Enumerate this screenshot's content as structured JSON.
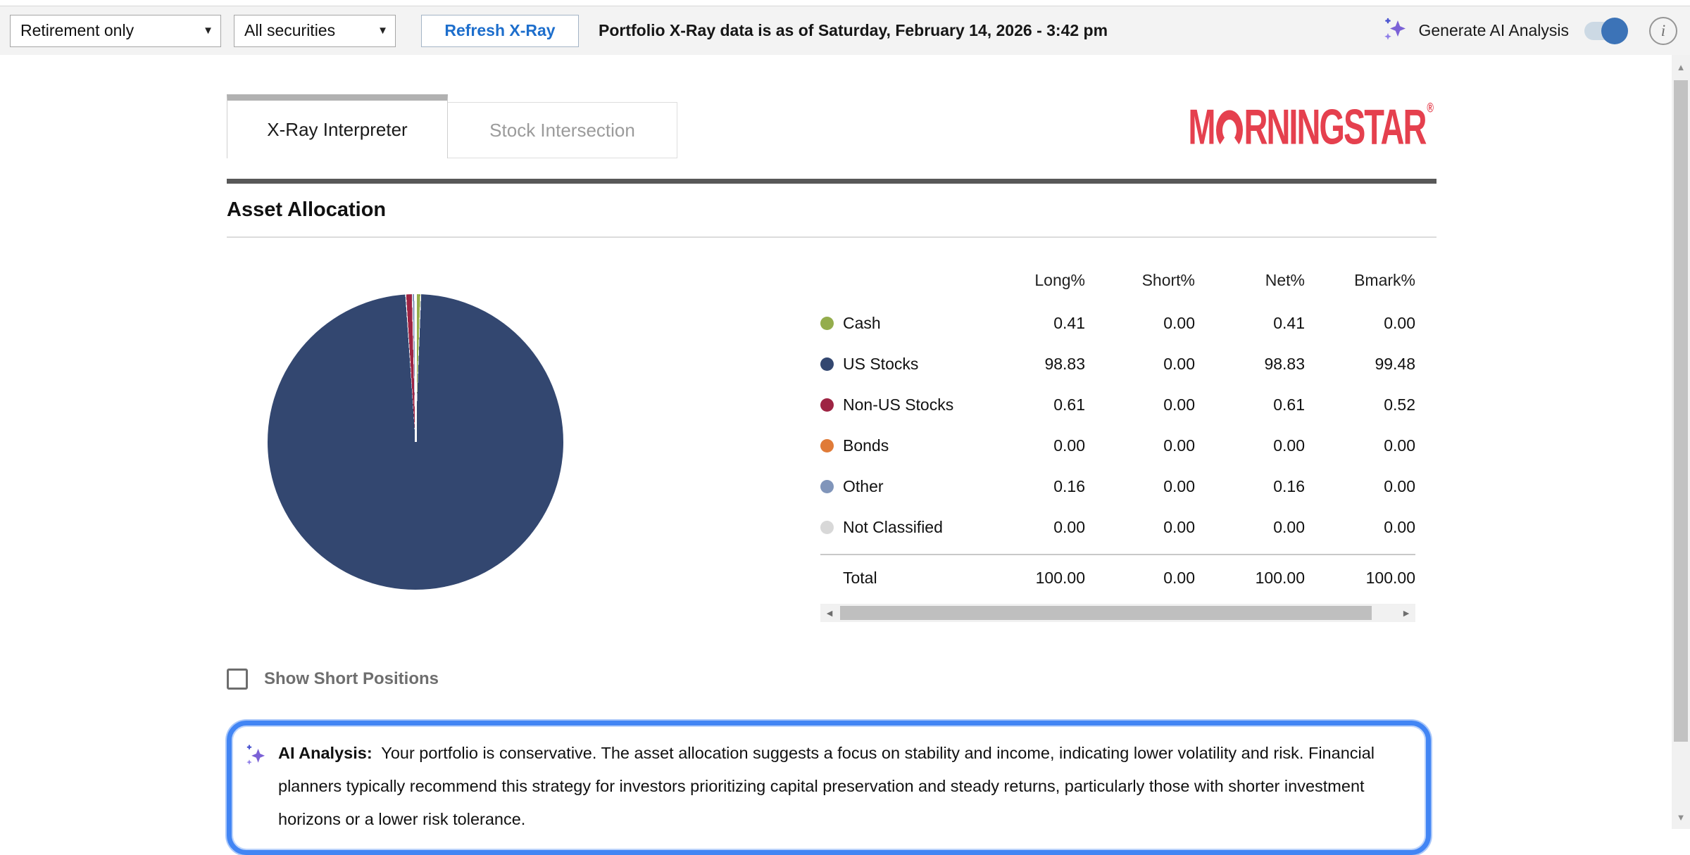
{
  "toolbar": {
    "portfolio_filter": "Retirement only",
    "securities_filter": "All securities",
    "refresh_label": "Refresh X-Ray",
    "status_text": "Portfolio X-Ray data is as of Saturday, February 14, 2026 - 3:42 pm",
    "ai_toggle_label": "Generate AI Analysis",
    "ai_toggle_on": true,
    "accent_blue": "#1d6ecc",
    "toggle_blue": "#3c73b7"
  },
  "brand": {
    "logo_prefix": "M",
    "logo_suffix": "RNINGSTAR",
    "logo_mark": "®",
    "logo_color": "#e5404e"
  },
  "tabs": [
    {
      "label": "X-Ray Interpreter",
      "active": true
    },
    {
      "label": "Stock Intersection",
      "active": false
    }
  ],
  "section_title": "Asset Allocation",
  "chart_data": {
    "type": "pie",
    "title": "Asset Allocation",
    "categories": [
      "Cash",
      "US Stocks",
      "Non-US Stocks",
      "Bonds",
      "Other",
      "Not Classified"
    ],
    "colors": [
      "#94ad4c",
      "#334770",
      "#9e2443",
      "#e07b38",
      "#8095ba",
      "#d8d8d8"
    ],
    "series": [
      {
        "name": "Long%",
        "values": [
          0.41,
          98.83,
          0.61,
          0.0,
          0.16,
          0.0
        ]
      },
      {
        "name": "Short%",
        "values": [
          0.0,
          0.0,
          0.0,
          0.0,
          0.0,
          0.0
        ]
      },
      {
        "name": "Net%",
        "values": [
          0.41,
          98.83,
          0.61,
          0.0,
          0.16,
          0.0
        ]
      },
      {
        "name": "Bmark%",
        "values": [
          0.0,
          99.48,
          0.52,
          0.0,
          0.0,
          0.0
        ]
      }
    ],
    "pie_series": "Net%",
    "totals": {
      "Long%": 100.0,
      "Short%": 0.0,
      "Net%": 100.0,
      "Bmark%": 100.0
    },
    "legend_position": "right"
  },
  "table": {
    "columns": [
      "Long%",
      "Short%",
      "Net%",
      "Bmark%"
    ],
    "rows": [
      {
        "label": "Cash",
        "color": "#94ad4c",
        "values": [
          "0.41",
          "0.00",
          "0.41",
          "0.00"
        ]
      },
      {
        "label": "US Stocks",
        "color": "#334770",
        "values": [
          "98.83",
          "0.00",
          "98.83",
          "99.48"
        ]
      },
      {
        "label": "Non-US Stocks",
        "color": "#9e2443",
        "values": [
          "0.61",
          "0.00",
          "0.61",
          "0.52"
        ]
      },
      {
        "label": "Bonds",
        "color": "#e07b38",
        "values": [
          "0.00",
          "0.00",
          "0.00",
          "0.00"
        ]
      },
      {
        "label": "Other",
        "color": "#8095ba",
        "values": [
          "0.16",
          "0.00",
          "0.16",
          "0.00"
        ]
      },
      {
        "label": "Not Classified",
        "color": "#d8d8d8",
        "values": [
          "0.00",
          "0.00",
          "0.00",
          "0.00"
        ]
      }
    ],
    "total": {
      "label": "Total",
      "values": [
        "100.00",
        "0.00",
        "100.00",
        "100.00"
      ]
    }
  },
  "controls": {
    "show_short_positions_label": "Show Short Positions",
    "checked": false
  },
  "ai_analysis": {
    "label": "AI Analysis:",
    "text": "Your portfolio is conservative. The asset allocation suggests a focus on stability and income, indicating lower volatility and risk. Financial planners typically recommend this strategy for investors prioritizing capital preservation and steady returns, particularly those with shorter investment horizons or a lower risk tolerance.",
    "border_color": "#4285f4",
    "sparkle_color": "#7b61d6"
  }
}
